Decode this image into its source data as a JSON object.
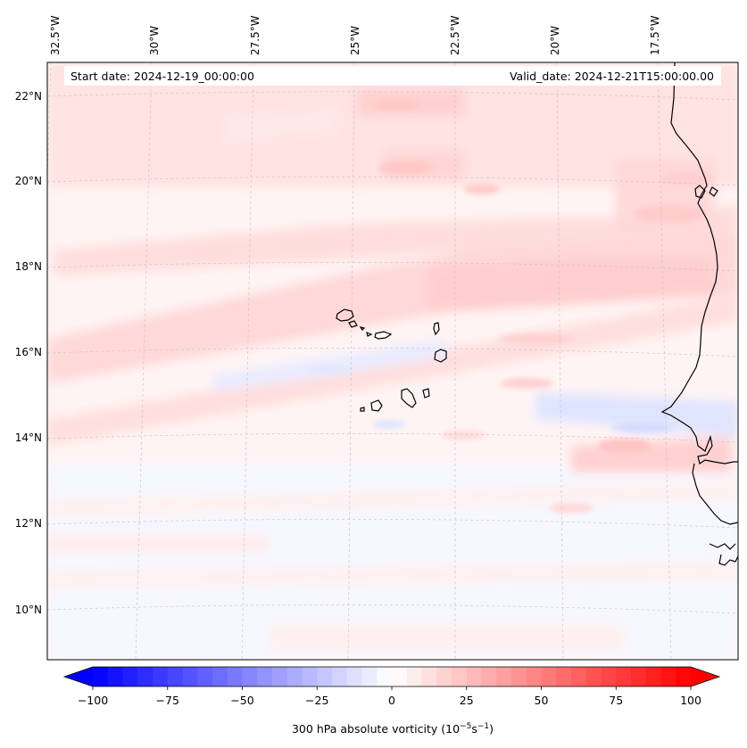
{
  "header": {
    "start_date": "Start date: 2024-12-19_00:00:00",
    "valid_date": "Valid_date: 2024-12-21T15:00:00.00"
  },
  "map": {
    "lon_labels": [
      "32.5°W",
      "30°W",
      "27.5°W",
      "25°W",
      "22.5°W",
      "20°W",
      "17.5°W"
    ],
    "lat_labels": [
      "22°N",
      "20°N",
      "18°N",
      "16°N",
      "14°N",
      "12°N",
      "10°N"
    ],
    "field": "300 hPa absolute vorticity",
    "colors": {
      "coast": "#000000",
      "grid": "#c8c8c8",
      "positive": "#ff0000",
      "negative": "#0000ff"
    }
  },
  "colorbar": {
    "min": -100,
    "max": 100,
    "tick_values": [
      -100,
      -75,
      -50,
      -25,
      0,
      25,
      50,
      75,
      100
    ],
    "tick_labels": [
      "−100",
      "−75",
      "−50",
      "−25",
      "0",
      "25",
      "50",
      "75",
      "100"
    ],
    "label_main": "300 hPa absolute vorticity (10",
    "label_exp1": "−5",
    "label_mid": "s",
    "label_exp2": "−1",
    "label_end": ")"
  }
}
